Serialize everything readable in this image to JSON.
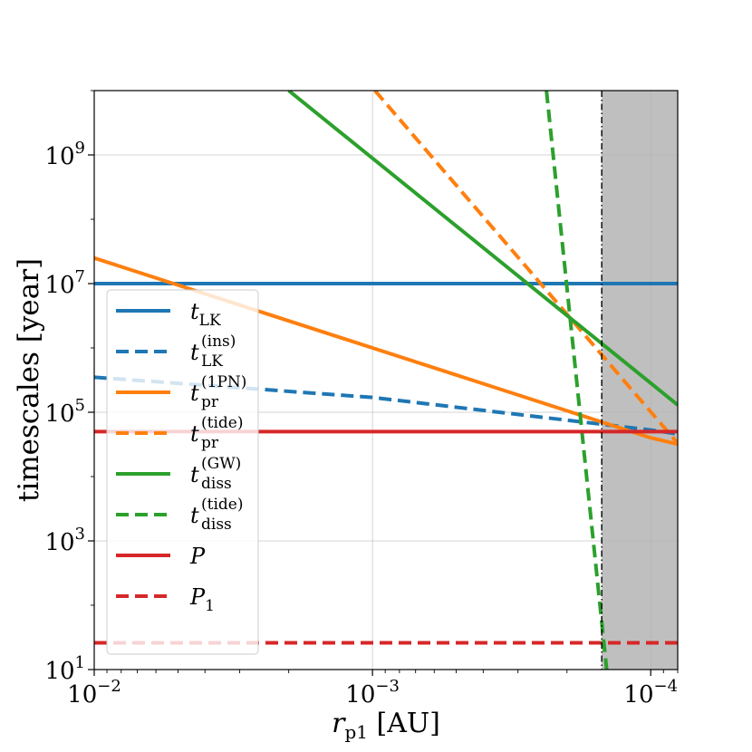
{
  "chart_data": {
    "type": "line",
    "xscale": "log",
    "yscale": "log",
    "x_reversed": true,
    "xlim": [
      0.01,
      8e-05
    ],
    "ylim": [
      10,
      10000000000.0
    ],
    "grid": true,
    "xlabel": "r_p1 [AU]",
    "xlabel_parts": {
      "var": "r",
      "sub": "p1",
      "unit": "[AU]"
    },
    "ylabel": "timescales [year]",
    "xticks": [
      {
        "value": 0.01,
        "base": "10",
        "exp": "−2"
      },
      {
        "value": 0.001,
        "base": "10",
        "exp": "−3"
      },
      {
        "value": 0.0001,
        "base": "10",
        "exp": "−4"
      }
    ],
    "yticks": [
      {
        "value": 10,
        "base": "10",
        "exp": "1"
      },
      {
        "value": 1000,
        "base": "10",
        "exp": "3"
      },
      {
        "value": 100000,
        "base": "10",
        "exp": "5"
      },
      {
        "value": 10000000,
        "base": "10",
        "exp": "7"
      },
      {
        "value": 1000000000,
        "base": "10",
        "exp": "9"
      }
    ],
    "shaded_region": {
      "x_from": 0.00015,
      "x_to": 8e-05,
      "color": "#bfbfbf"
    },
    "vertical_line": {
      "x": 0.00015,
      "style": "dashdot",
      "color": "#000000"
    },
    "series": [
      {
        "name": "t_LK",
        "var": "t",
        "sub": "LK",
        "sup": "",
        "color": "#1f77b4",
        "dash": "solid",
        "x": [
          0.01,
          8e-05
        ],
        "y": [
          10000000,
          10000000
        ]
      },
      {
        "name": "t_LK^(ins)",
        "var": "t",
        "sub": "LK",
        "sup": "(ins)",
        "color": "#1f77b4",
        "dash": "dashed",
        "x": [
          0.01,
          0.001,
          0.0001,
          8e-05
        ],
        "y": [
          350000,
          170000,
          53000,
          46000
        ]
      },
      {
        "name": "t_pr^(1PN)",
        "var": "t",
        "sub": "pr",
        "sup": "(1PN)",
        "color": "#ff7f0e",
        "dash": "solid",
        "x": [
          0.01,
          0.001,
          0.0001,
          8e-05
        ],
        "y": [
          25000000,
          1000000,
          40000,
          32000
        ]
      },
      {
        "name": "t_pr^(tide)",
        "var": "t",
        "sub": "pr",
        "sup": "(tide)",
        "color": "#ff7f0e",
        "dash": "dashed",
        "x": [
          0.00098,
          8e-05
        ],
        "y": [
          10000000000,
          33000
        ]
      },
      {
        "name": "t_diss^(GW)",
        "var": "t",
        "sub": "diss",
        "sup": "(GW)",
        "color": "#2ca02c",
        "dash": "solid",
        "x": [
          0.002,
          8e-05
        ],
        "y": [
          10000000000,
          130000
        ]
      },
      {
        "name": "t_diss^(tide)",
        "var": "t",
        "sub": "diss",
        "sup": "(tide)",
        "color": "#2ca02c",
        "dash": "dashed",
        "x": [
          0.000237,
          0.000144
        ],
        "y": [
          10000000000,
          10
        ]
      },
      {
        "name": "P",
        "var": "P",
        "sub": "",
        "sup": "",
        "color": "#d62728",
        "dash": "solid",
        "x": [
          0.01,
          8e-05
        ],
        "y": [
          50000,
          50000
        ]
      },
      {
        "name": "P_1",
        "var": "P",
        "sub": "1",
        "sup": "",
        "color": "#d62728",
        "dash": "dashed",
        "x": [
          0.01,
          8e-05
        ],
        "y": [
          26,
          26
        ]
      }
    ],
    "legend_position": "left"
  }
}
